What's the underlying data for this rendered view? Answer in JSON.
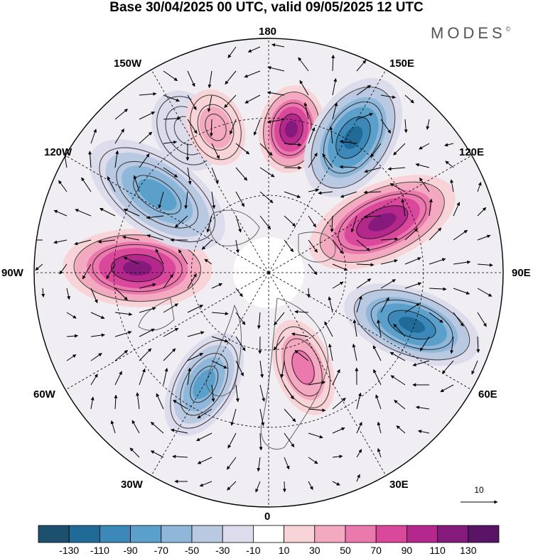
{
  "title": "Base 30/04/2025 00 UTC, valid 09/05/2025 12 UTC",
  "brand": {
    "name": "MODES",
    "mark": "©"
  },
  "longitude_labels": {
    "n180": "180",
    "w150": "150W",
    "e150": "150E",
    "w120": "120W",
    "e120": "120E",
    "w90": "90W",
    "e90": "90E",
    "w60": "60W",
    "e60": "60E",
    "w30": "30W",
    "e30": "30E",
    "s0": "0"
  },
  "vector_scale": {
    "label": "10"
  },
  "colorbar": {
    "colors": [
      "#1d4f6e",
      "#1f6a97",
      "#3b88b9",
      "#5ba0cb",
      "#8fb7d9",
      "#b9c9e2",
      "#dcdcec",
      "#ffffff",
      "#f8d3d7",
      "#f3a9bf",
      "#ec79ad",
      "#d9489b",
      "#b3288a",
      "#861a7c",
      "#591465"
    ],
    "tick_labels": [
      "-130",
      "-110",
      "-90",
      "-70",
      "-50",
      "-30",
      "-10",
      "10",
      "30",
      "50",
      "70",
      "90",
      "110",
      "130"
    ]
  },
  "map_data": {
    "projection": "north polar stereographic",
    "field": "anomaly (shaded) with wind vectors",
    "centers": [
      {
        "lon": 171,
        "sign": "positive",
        "level": 130
      },
      {
        "lon": 148,
        "sign": "negative",
        "level": -130
      },
      {
        "lon": 114,
        "sign": "positive",
        "level": 130
      },
      {
        "lon": 70,
        "sign": "negative",
        "level": -130
      },
      {
        "lon": 20,
        "sign": "positive",
        "level": 70
      },
      {
        "lon": 330,
        "sign": "negative",
        "level": -90
      },
      {
        "lon": 268,
        "sign": "positive",
        "level": 130
      },
      {
        "lon": 235,
        "sign": "negative",
        "level": -90
      },
      {
        "lon": 210,
        "sign": "negative",
        "level": -30
      },
      {
        "lon": 200,
        "sign": "positive",
        "level": 50
      }
    ]
  }
}
